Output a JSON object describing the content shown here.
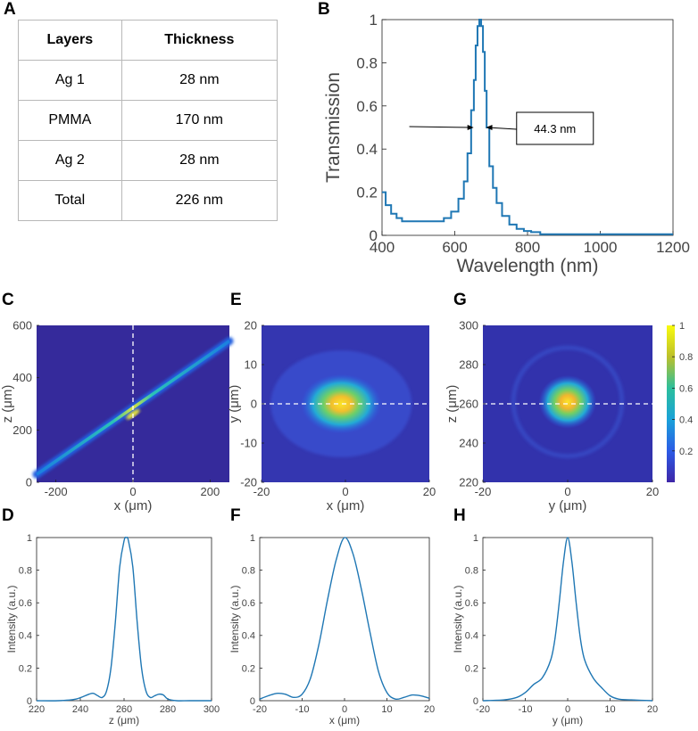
{
  "table": {
    "header": [
      "Layers",
      "Thickness"
    ],
    "rows": [
      [
        "Ag 1",
        "28 nm"
      ],
      [
        "PMMA",
        "170 nm"
      ],
      [
        "Ag 2",
        "28 nm"
      ],
      [
        "Total",
        "226 nm"
      ]
    ]
  },
  "colors": {
    "line": "#1f77b4",
    "field_low": "#3a2fa3",
    "field_mid": "#21a0d8",
    "field_high": "#f5e624",
    "guide": "#ffffff"
  },
  "chart_data": [
    {
      "panel": "B",
      "type": "line",
      "xlabel": "Wavelength (nm)",
      "ylabel": "Transmission",
      "xlim": [
        400,
        1200
      ],
      "ylim": [
        0,
        1
      ],
      "xticks": [
        400,
        600,
        800,
        1000,
        1200
      ],
      "yticks": [
        0,
        0.2,
        0.4,
        0.6,
        0.8,
        1
      ],
      "x": [
        400,
        420,
        430,
        450,
        460,
        480,
        500,
        560,
        580,
        600,
        620,
        630,
        640,
        650,
        655,
        660,
        665,
        670,
        675,
        680,
        685,
        690,
        700,
        710,
        720,
        740,
        760,
        780,
        800,
        820,
        850,
        1200
      ],
      "y": [
        0.2,
        0.14,
        0.1,
        0.08,
        0.065,
        0.065,
        0.065,
        0.065,
        0.08,
        0.11,
        0.17,
        0.25,
        0.38,
        0.58,
        0.72,
        0.88,
        0.97,
        1.0,
        0.97,
        0.85,
        0.67,
        0.5,
        0.32,
        0.22,
        0.15,
        0.09,
        0.05,
        0.03,
        0.02,
        0.015,
        0.005,
        0.005
      ],
      "annotation": "44.3 nm"
    },
    {
      "panel": "C",
      "type": "heatmap",
      "xlabel": "x (μm)",
      "ylabel": "z (μm)",
      "xlim": [
        -250,
        250
      ],
      "ylim": [
        0,
        600
      ],
      "xticks": [
        -200,
        0,
        200
      ],
      "yticks": [
        0,
        200,
        400,
        600
      ],
      "beam_start": [
        -250,
        30
      ],
      "beam_end": [
        250,
        540
      ],
      "focus": [
        0,
        260
      ]
    },
    {
      "panel": "E",
      "type": "heatmap",
      "xlabel": "x (μm)",
      "ylabel": "y (μm)",
      "xlim": [
        -20,
        20
      ],
      "ylim": [
        -20,
        20
      ],
      "xticks": [
        -20,
        0,
        20
      ],
      "yticks": [
        -20,
        -10,
        0,
        10,
        20
      ],
      "peak": [
        -1,
        0
      ]
    },
    {
      "panel": "G",
      "type": "heatmap",
      "xlabel": "y (μm)",
      "ylabel": "z (μm)",
      "xlim": [
        -20,
        20
      ],
      "ylim": [
        220,
        300
      ],
      "xticks": [
        -20,
        0,
        20
      ],
      "yticks": [
        220,
        240,
        260,
        280,
        300
      ],
      "peak": [
        0,
        261
      ],
      "colorbar": {
        "range": [
          0,
          1
        ],
        "ticks": [
          0.2,
          0.4,
          0.6,
          0.8,
          1
        ]
      }
    },
    {
      "panel": "D",
      "type": "line",
      "xlabel": "z (μm)",
      "ylabel": "Intensity (a.u.)",
      "xlim": [
        220,
        300
      ],
      "ylim": [
        0,
        1
      ],
      "xticks": [
        220,
        240,
        260,
        280,
        300
      ],
      "yticks": [
        0,
        0.2,
        0.4,
        0.6,
        0.8,
        1
      ],
      "x": [
        220,
        230,
        238,
        244,
        246,
        248,
        250,
        252,
        254,
        256,
        258,
        260,
        261,
        262,
        264,
        266,
        268,
        270,
        272,
        274,
        276,
        278,
        280,
        284,
        290,
        300
      ],
      "y": [
        0.0,
        0.0,
        0.01,
        0.04,
        0.045,
        0.03,
        0.02,
        0.06,
        0.2,
        0.48,
        0.82,
        0.98,
        1.0,
        0.98,
        0.82,
        0.48,
        0.2,
        0.06,
        0.02,
        0.03,
        0.04,
        0.035,
        0.01,
        0.0,
        0.0,
        0.0
      ]
    },
    {
      "panel": "F",
      "type": "line",
      "xlabel": "x (μm)",
      "ylabel": "Intensity (a.u.)",
      "xlim": [
        -20,
        20
      ],
      "ylim": [
        0,
        1
      ],
      "xticks": [
        -20,
        -10,
        0,
        10,
        20
      ],
      "yticks": [
        0,
        0.2,
        0.4,
        0.6,
        0.8,
        1
      ],
      "x": [
        -20,
        -18,
        -16,
        -14,
        -12,
        -10,
        -8,
        -6,
        -4,
        -2,
        0,
        2,
        4,
        6,
        8,
        10,
        12,
        14,
        16,
        18,
        20
      ],
      "y": [
        0.01,
        0.03,
        0.045,
        0.04,
        0.02,
        0.04,
        0.14,
        0.35,
        0.62,
        0.86,
        1.0,
        0.9,
        0.68,
        0.42,
        0.18,
        0.05,
        0.01,
        0.02,
        0.035,
        0.03,
        0.015
      ]
    },
    {
      "panel": "H",
      "type": "line",
      "xlabel": "y (μm)",
      "ylabel": "Intensity (a.u.)",
      "xlim": [
        -20,
        20
      ],
      "ylim": [
        0,
        1
      ],
      "xticks": [
        -20,
        -10,
        0,
        10,
        20
      ],
      "yticks": [
        0,
        0.2,
        0.4,
        0.6,
        0.8,
        1
      ],
      "x": [
        -20,
        -15,
        -12,
        -10,
        -8,
        -6,
        -4,
        -3,
        -2,
        -1,
        0,
        1,
        2,
        3,
        4,
        6,
        8,
        10,
        12,
        15,
        20
      ],
      "y": [
        0.0,
        0.005,
        0.02,
        0.05,
        0.1,
        0.14,
        0.25,
        0.38,
        0.6,
        0.85,
        1.0,
        0.85,
        0.6,
        0.38,
        0.25,
        0.14,
        0.08,
        0.03,
        0.01,
        0.005,
        0.0
      ]
    }
  ]
}
